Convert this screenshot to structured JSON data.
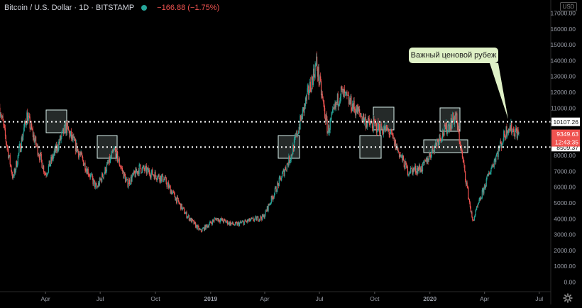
{
  "header": {
    "title": "Bitcoin / U.S. Dollar · 1D · BITSTAMP",
    "change": "−166.88 (−1.75%)"
  },
  "price_scale": {
    "currency": "USD",
    "labels": [
      "17000.00",
      "16000.00",
      "15000.00",
      "14000.00",
      "13000.00",
      "12000.00",
      "11000.00",
      "10000.00",
      "9000.00",
      "8000.00",
      "7000.00",
      "6000.00",
      "5000.00",
      "4000.00",
      "3000.00",
      "2000.00",
      "1000.00",
      "0.00"
    ],
    "level_high": "10107.26",
    "level_low": "8509.37",
    "last_price": "9349.63",
    "countdown": "12:43:35"
  },
  "time_scale": {
    "labels": [
      "Apr",
      "Jul",
      "Oct",
      "2019",
      "Apr",
      "Jul",
      "Oct",
      "2020",
      "Apr",
      "Jul"
    ]
  },
  "annotation": {
    "callout": "Важный ценовой рубеж"
  },
  "colors": {
    "up": "#26a69a",
    "down": "#ef5350",
    "background": "#000000",
    "callout_bg": "#dff1c6",
    "box_fill": "#cfe9e6"
  },
  "chart_data": {
    "type": "candlestick",
    "symbol": "Bitcoin / U.S. Dollar",
    "interval": "1D",
    "exchange": "BITSTAMP",
    "ylim": [
      0,
      17000
    ],
    "horizontal_levels": [
      10107.26,
      8509.37
    ],
    "price_path": [
      {
        "date": "2018-01-15",
        "price": 11000
      },
      {
        "date": "2018-02-06",
        "price": 6500
      },
      {
        "date": "2018-03-01",
        "price": 10500
      },
      {
        "date": "2018-04-01",
        "price": 6800
      },
      {
        "date": "2018-05-05",
        "price": 9800
      },
      {
        "date": "2018-06-25",
        "price": 5900
      },
      {
        "date": "2018-07-25",
        "price": 8300
      },
      {
        "date": "2018-08-15",
        "price": 6200
      },
      {
        "date": "2018-09-05",
        "price": 7200
      },
      {
        "date": "2018-10-15",
        "price": 6500
      },
      {
        "date": "2018-11-20",
        "price": 4300
      },
      {
        "date": "2018-12-15",
        "price": 3200
      },
      {
        "date": "2019-01-10",
        "price": 4000
      },
      {
        "date": "2019-02-10",
        "price": 3600
      },
      {
        "date": "2019-03-30",
        "price": 4100
      },
      {
        "date": "2019-05-15",
        "price": 8000
      },
      {
        "date": "2019-06-26",
        "price": 13800
      },
      {
        "date": "2019-07-15",
        "price": 9500
      },
      {
        "date": "2019-08-05",
        "price": 12000
      },
      {
        "date": "2019-09-20",
        "price": 10000
      },
      {
        "date": "2019-10-25",
        "price": 9500
      },
      {
        "date": "2019-11-25",
        "price": 7000
      },
      {
        "date": "2019-12-20",
        "price": 7200
      },
      {
        "date": "2020-01-15",
        "price": 9000
      },
      {
        "date": "2020-02-13",
        "price": 10500
      },
      {
        "date": "2020-03-12",
        "price": 3800
      },
      {
        "date": "2020-04-10",
        "price": 7000
      },
      {
        "date": "2020-05-10",
        "price": 9800
      },
      {
        "date": "2020-05-28",
        "price": 9349.63
      }
    ]
  }
}
